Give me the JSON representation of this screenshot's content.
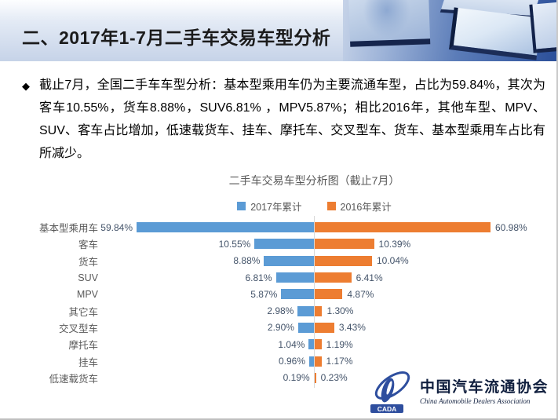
{
  "header": {
    "title": "二、2017年1-7月二手车交易车型分析"
  },
  "body": {
    "bullet": "◆",
    "text": "截止7月，全国二手车车型分析：基本型乘用车仍为主要流通车型，占比为59.84%，其次为客车10.55%，货车8.88%，SUV6.81% ，MPV5.87%；相比2016年，其他车型、MPV、SUV、客车占比增加，低速载货车、挂车、摩托车、交叉型车、货车、基本型乘用车占比有所减少。"
  },
  "chart_data": {
    "type": "bar",
    "variant": "diverging-horizontal",
    "title": "二手车交易车型分析图（截止7月）",
    "xlabel": "",
    "ylabel": "",
    "legend_position": "top-center",
    "categories": [
      "基本型乘用车",
      "客车",
      "货车",
      "SUV",
      "MPV",
      "其它车",
      "交叉型车",
      "摩托车",
      "挂车",
      "低速载货车"
    ],
    "series": [
      {
        "name": "2017年累计",
        "color": "#5B9BD5",
        "direction": "left",
        "values": [
          59.84,
          10.55,
          8.88,
          6.81,
          5.87,
          2.98,
          2.9,
          1.04,
          0.96,
          0.19
        ]
      },
      {
        "name": "2016年累计",
        "color": "#ED7D31",
        "direction": "right",
        "values": [
          60.98,
          10.39,
          10.04,
          6.41,
          4.87,
          1.3,
          3.43,
          1.19,
          1.17,
          0.23
        ]
      }
    ],
    "value_label_format": "0.00%",
    "note": "first-row bars clipped at plot edges"
  },
  "colors": {
    "bar2017": "#5B9BD5",
    "bar2016": "#ED7D31",
    "axis_line": "#D9D9D9",
    "label_text": "#44546A",
    "category_text": "#595959",
    "logo_navy": "#101F3E",
    "emblem_blue": "#2E4E9E"
  },
  "footer": {
    "logo": {
      "acronym": "CADA",
      "cn": "中国汽车流通协会",
      "en": "China Automobile Dealers Association"
    }
  }
}
